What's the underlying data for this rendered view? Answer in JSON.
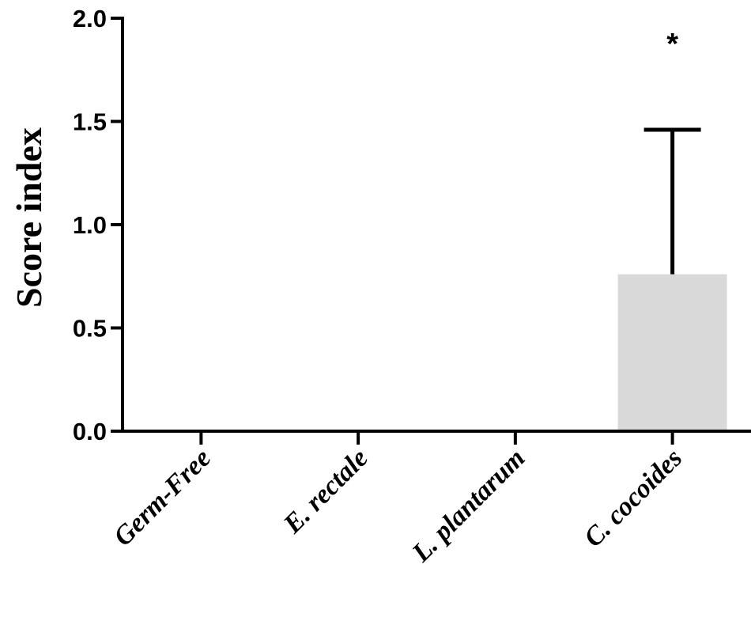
{
  "chart_data": {
    "type": "bar",
    "categories": [
      "Germ-Free",
      "E. rectale",
      "L. plantarum",
      "C. cocoides"
    ],
    "values": [
      0,
      0,
      0,
      0.76
    ],
    "error_upper": [
      null,
      null,
      null,
      1.46
    ],
    "annotations": [
      "",
      "",
      "",
      "*"
    ],
    "title": "",
    "xlabel": "",
    "ylabel": "Score index",
    "ylim": [
      0,
      2.0
    ],
    "yticks": [
      0,
      0.5,
      1.0,
      1.5,
      2.0
    ],
    "ytick_labels": [
      "0.0",
      "0.5",
      "1.0",
      "1.5",
      "2.0"
    ],
    "grid": false,
    "bar_color": "#d9d9d9",
    "axis_color": "#000000"
  }
}
